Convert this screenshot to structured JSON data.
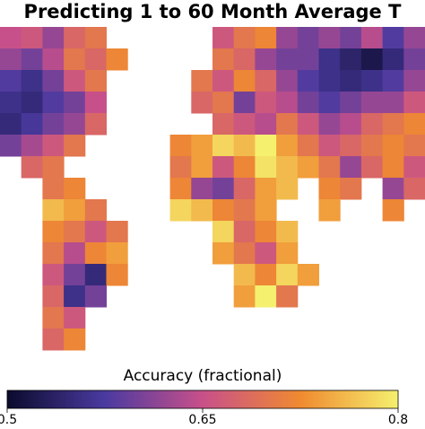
{
  "map": {
    "title": "Predicting 1 to 60 Month Average T",
    "grid": [
      [
        0.65,
        0.66,
        0.62,
        0.68,
        0.7,
        null,
        null,
        null,
        null,
        null,
        0.66,
        0.7,
        0.72,
        0.62,
        0.6,
        0.62,
        0.6,
        0.64,
        0.58,
        0.62
      ],
      [
        0.62,
        0.6,
        0.64,
        0.7,
        0.68,
        0.72,
        null,
        null,
        null,
        null,
        0.7,
        0.68,
        0.62,
        0.6,
        0.6,
        0.56,
        0.54,
        0.52,
        0.55,
        0.6
      ],
      [
        0.58,
        0.56,
        0.6,
        0.66,
        0.7,
        null,
        null,
        null,
        null,
        0.7,
        0.66,
        0.72,
        0.68,
        0.62,
        0.58,
        0.56,
        0.55,
        0.56,
        0.58,
        0.62
      ],
      [
        0.56,
        0.55,
        0.58,
        0.6,
        0.65,
        null,
        null,
        null,
        null,
        0.68,
        0.7,
        0.6,
        0.66,
        0.64,
        0.6,
        0.58,
        0.6,
        0.62,
        0.62,
        0.66
      ],
      [
        0.55,
        0.57,
        0.6,
        0.62,
        0.68,
        null,
        null,
        null,
        null,
        null,
        0.68,
        0.66,
        0.64,
        0.7,
        0.66,
        0.62,
        0.64,
        0.68,
        0.7,
        0.72
      ],
      [
        0.6,
        0.63,
        0.66,
        0.7,
        null,
        null,
        null,
        null,
        0.72,
        0.74,
        0.78,
        0.76,
        0.8,
        0.74,
        0.7,
        0.66,
        0.68,
        0.7,
        0.72,
        0.7
      ],
      [
        null,
        0.68,
        0.7,
        null,
        null,
        null,
        null,
        null,
        0.7,
        0.74,
        0.66,
        0.72,
        0.79,
        0.76,
        0.74,
        0.7,
        0.62,
        0.68,
        0.72,
        0.66
      ],
      [
        null,
        null,
        0.7,
        0.72,
        null,
        null,
        null,
        null,
        0.72,
        0.62,
        0.6,
        0.68,
        0.74,
        0.76,
        null,
        0.72,
        0.7,
        null,
        0.62,
        0.68
      ],
      [
        null,
        null,
        0.76,
        0.74,
        0.7,
        null,
        null,
        null,
        0.78,
        0.76,
        0.72,
        0.7,
        0.74,
        null,
        null,
        0.74,
        null,
        null,
        0.72,
        null
      ],
      [
        null,
        null,
        0.72,
        0.7,
        0.66,
        0.7,
        null,
        null,
        null,
        null,
        0.78,
        0.68,
        0.72,
        0.76,
        null,
        null,
        null,
        null,
        null,
        null
      ],
      [
        null,
        null,
        0.7,
        0.64,
        0.72,
        0.74,
        null,
        null,
        null,
        null,
        0.74,
        0.7,
        0.66,
        0.74,
        null,
        null,
        null,
        null,
        null,
        null
      ],
      [
        null,
        null,
        0.66,
        0.6,
        0.55,
        0.72,
        null,
        null,
        null,
        null,
        null,
        0.76,
        0.72,
        0.78,
        0.74,
        null,
        null,
        null,
        null,
        null
      ],
      [
        null,
        null,
        0.68,
        0.56,
        0.6,
        null,
        null,
        null,
        null,
        null,
        null,
        0.74,
        0.8,
        0.7,
        null,
        null,
        null,
        null,
        null,
        null
      ],
      [
        null,
        null,
        0.7,
        0.66,
        null,
        null,
        null,
        null,
        null,
        null,
        null,
        null,
        null,
        null,
        null,
        null,
        null,
        null,
        null,
        null
      ],
      [
        null,
        null,
        0.68,
        0.72,
        null,
        null,
        null,
        null,
        null,
        null,
        null,
        null,
        null,
        null,
        null,
        null,
        null,
        null,
        null,
        null
      ]
    ],
    "colorbar": {
      "label": "Accuracy (fractional)",
      "lim": [
        0.5,
        0.8
      ],
      "ticks": [
        0.5,
        0.65,
        0.8
      ],
      "colormap": [
        "#0b0b2d",
        "#4a3aa0",
        "#c8508a",
        "#f08a30",
        "#f5f06e"
      ]
    }
  }
}
